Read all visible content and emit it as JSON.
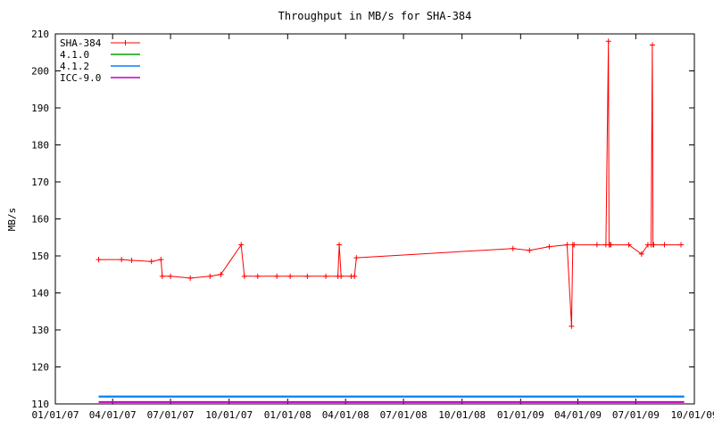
{
  "chart_data": {
    "type": "line",
    "title": "Throughput in MB/s for SHA-384",
    "xlabel": "",
    "ylabel": "MB/s",
    "xlim": [
      "01/01/07",
      "10/01/09"
    ],
    "ylim": [
      110,
      210
    ],
    "x_ticks": [
      "01/01/07",
      "04/01/07",
      "07/01/07",
      "10/01/07",
      "01/01/08",
      "04/01/08",
      "07/01/08",
      "10/01/08",
      "01/01/09",
      "04/01/09",
      "07/01/09",
      "10/01/09"
    ],
    "y_ticks": [
      "110",
      "120",
      "130",
      "140",
      "150",
      "160",
      "170",
      "180",
      "190",
      "200",
      "210"
    ],
    "grid": false,
    "legend_position": "top-left",
    "series": [
      {
        "name": "SHA-384",
        "color": "#ff0000",
        "marker": "plus",
        "x": [
          "03/10/07",
          "04/15/07",
          "05/01/07",
          "06/01/07",
          "06/16/07",
          "06/18/07",
          "07/01/07",
          "08/01/07",
          "09/01/07",
          "09/18/07",
          "10/20/07",
          "10/25/07",
          "11/15/07",
          "12/15/07",
          "01/05/08",
          "02/01/08",
          "03/01/08",
          "03/20/08",
          "03/22/08",
          "03/25/08",
          "04/10/08",
          "04/15/08",
          "04/18/08",
          "12/20/08",
          "01/15/09",
          "02/15/09",
          "03/15/09",
          "03/22/09",
          "03/24/09",
          "03/26/09",
          "05/01/09",
          "05/15/09",
          "05/19/09",
          "05/20/09",
          "05/21/09",
          "05/23/09",
          "06/20/09",
          "07/10/09",
          "07/20/09",
          "07/25/09",
          "07/27/09",
          "07/28/09",
          "07/29/09",
          "08/15/09",
          "09/10/09"
        ],
        "y": [
          149,
          149,
          148.8,
          148.5,
          149,
          144.5,
          144.5,
          144,
          144.5,
          145,
          153,
          144.5,
          144.5,
          144.5,
          144.5,
          144.5,
          144.5,
          144.5,
          153,
          144.5,
          144.5,
          144.5,
          149.5,
          152,
          151.5,
          152.5,
          153,
          131,
          153,
          153,
          153,
          153,
          208,
          153,
          153,
          153,
          153,
          150.5,
          153,
          153,
          207,
          153,
          153,
          153,
          153
        ]
      },
      {
        "name": "4.1.0",
        "color": "#00a000",
        "marker": "none",
        "x": [
          "03/10/07",
          "09/15/09"
        ],
        "y": [
          112,
          112
        ]
      },
      {
        "name": "4.1.2",
        "color": "#0080ff",
        "marker": "none",
        "x": [
          "03/10/07",
          "09/15/09"
        ],
        "y": [
          112,
          112
        ]
      },
      {
        "name": "ICC-9.0",
        "color": "#c000c0",
        "marker": "none",
        "x": [
          "03/10/07",
          "09/15/09"
        ],
        "y": [
          110.5,
          110.5
        ]
      }
    ]
  }
}
